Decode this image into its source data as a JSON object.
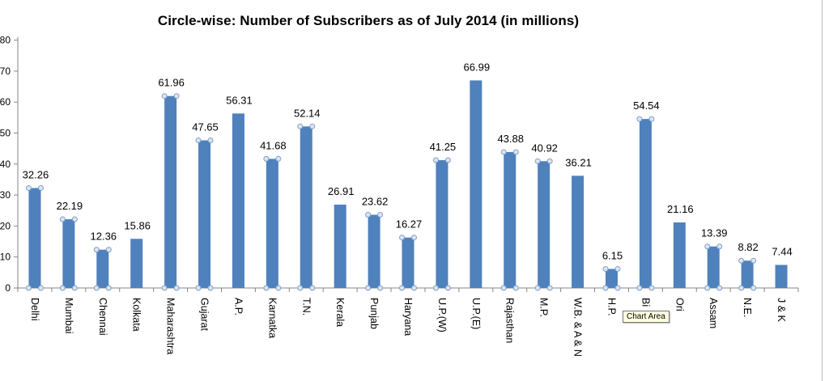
{
  "chart_data": {
    "type": "bar",
    "title": "Circle-wise: Number of Subscribers  as of July 2014 (in millions)",
    "categories": [
      "Delhi",
      "Mumbai",
      "Chennai",
      "Kolkata",
      "Maharashtra",
      "Gujarat",
      "A.P.",
      "Karnatka",
      "T.N.",
      "Kerala",
      "Punjab",
      "Haryana",
      "U.P.(W)",
      "U.P.(E)",
      "Rajasthan",
      "M.P.",
      "W.B. & A & N",
      "H.P.",
      "Bihar",
      "Orissa",
      "Assam",
      "N.E.",
      "J & K"
    ],
    "category_labels": [
      "Delhi",
      "Mumbai",
      "Chennai",
      "Kolkata",
      "Maharashtra",
      "Gujarat",
      "A.P.",
      "Karnatka",
      "T.N.",
      "Kerala",
      "Punjab",
      "Haryana",
      "U.P.(W)",
      "U.P.(E)",
      "Rajasthan",
      "M.P.",
      "W.B.  & A & N",
      "H.P.",
      "Bi",
      "Ori",
      "Assam",
      "N.E.",
      "J & K"
    ],
    "series": [
      {
        "values": [
          32.26,
          22.19,
          12.36,
          15.86,
          61.96,
          47.65,
          56.31,
          41.68,
          52.14,
          26.91,
          23.62,
          16.27,
          41.25,
          66.99,
          43.88,
          40.92,
          36.21,
          6.15,
          54.54,
          21.16,
          13.39,
          8.82,
          7.44
        ]
      }
    ],
    "data_labels": [
      "32.26",
      "22.19",
      "12.36",
      "15.86",
      "61.96",
      "47.65",
      "56.31",
      "41.68",
      "52.14",
      "26.91",
      "23.62",
      "16.27",
      "41.25",
      "66.99",
      "43.88",
      "40.92",
      "36.21",
      "6.15",
      "54.54",
      "21.16",
      "13.39",
      "8.82",
      "7.44"
    ],
    "selected_bars": [
      0,
      1,
      2,
      4,
      5,
      7,
      8,
      10,
      11,
      12,
      14,
      15,
      17,
      18,
      20,
      21
    ],
    "ylim": [
      0,
      80
    ],
    "y_tick_values": [
      0,
      10,
      20,
      30,
      40,
      50,
      60,
      70,
      80
    ],
    "grid": false,
    "legend": "none",
    "bar_color": "#4f81bd",
    "tooltip": "Chart Area"
  }
}
